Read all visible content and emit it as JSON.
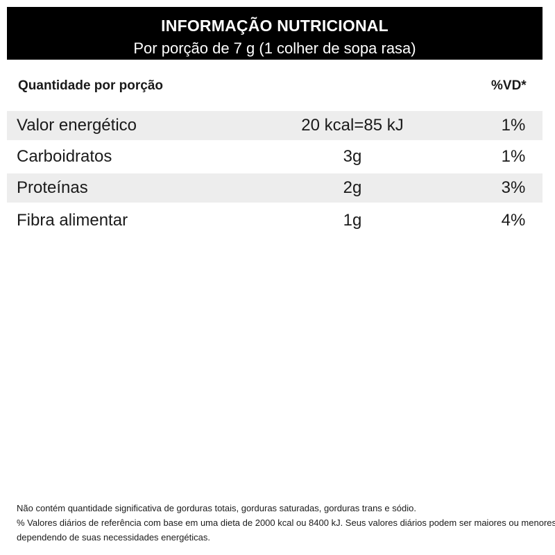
{
  "header": {
    "title": "INFORMAÇÃO NUTRICIONAL",
    "subtitle": "Por porção de 7 g (1 colher de sopa rasa)"
  },
  "columns": {
    "left": "Quantidade por porção",
    "right": "%VD*"
  },
  "rows": [
    {
      "name": "Valor energético",
      "amount": "20 kcal=85 kJ",
      "vd": "1%"
    },
    {
      "name": "Carboidratos",
      "amount": "3g",
      "vd": "1%"
    },
    {
      "name": "Proteínas",
      "amount": "2g",
      "vd": "3%"
    },
    {
      "name": "Fibra alimentar",
      "amount": "1g",
      "vd": "4%"
    }
  ],
  "footer": {
    "line1": "Não contém quantidade significativa de gorduras totais, gorduras saturadas, gorduras trans e sódio.",
    "line2": "% Valores diários de referência com base em uma dieta de 2000 kcal ou 8400 kJ. Seus valores diários podem ser maiores ou menores",
    "line3": "dependendo de suas necessidades energéticas."
  }
}
